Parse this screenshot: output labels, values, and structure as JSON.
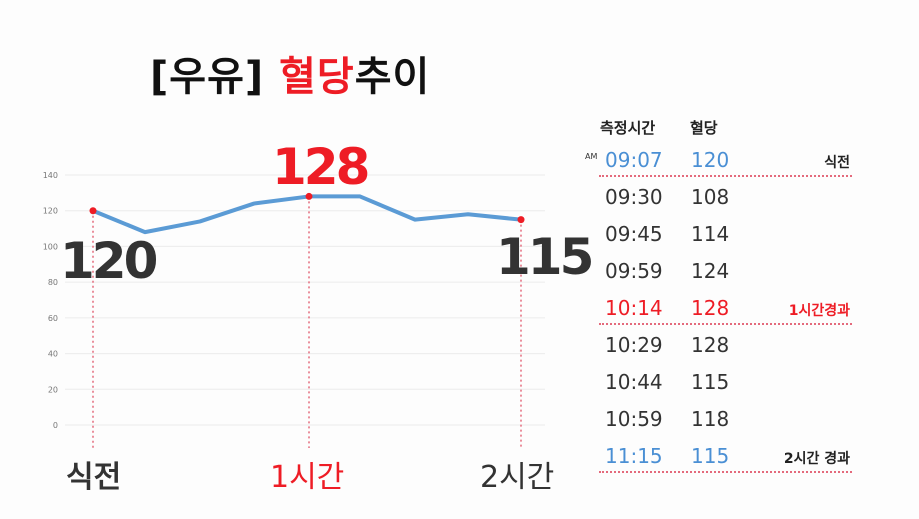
{
  "title": {
    "bracket": "[우유]",
    "highlight": "혈당",
    "rest": "추이"
  },
  "chart_data": {
    "type": "line",
    "title": "[우유] 혈당추이",
    "x": [
      "09:07",
      "09:30",
      "09:45",
      "09:59",
      "10:14",
      "10:29",
      "10:44",
      "10:59",
      "11:15"
    ],
    "series": [
      {
        "name": "혈당",
        "values": [
          120,
          108,
          114,
          124,
          128,
          128,
          115,
          118,
          115
        ],
        "color": "#5b9bd5"
      }
    ],
    "yticks": [
      0,
      20,
      40,
      60,
      80,
      100,
      120,
      140
    ],
    "ylim": [
      0,
      140
    ],
    "grid": true,
    "xlabel": "",
    "ylabel": "",
    "annotations": [
      {
        "label": "식전",
        "value": "120",
        "x": "09:07"
      },
      {
        "label": "1시간",
        "value": "128",
        "x": "10:14"
      },
      {
        "label": "2시간",
        "value": "115",
        "x": "11:15"
      }
    ]
  },
  "axis": {
    "yticks": [
      "140",
      "120",
      "100",
      "80",
      "60",
      "40",
      "20",
      "0"
    ]
  },
  "callouts": {
    "start": "120",
    "peak": "128",
    "end": "115"
  },
  "xlabels": {
    "start": "식전",
    "one_hour": "1시간",
    "two_hour": "2시간"
  },
  "table": {
    "headers": {
      "time": "측정시간",
      "value": "혈당"
    },
    "am_label": "AM",
    "rows": [
      {
        "time": "09:07",
        "value": "120",
        "note": "식전",
        "style": "blue"
      },
      {
        "time": "09:30",
        "value": "108",
        "note": "",
        "style": ""
      },
      {
        "time": "09:45",
        "value": "114",
        "note": "",
        "style": ""
      },
      {
        "time": "09:59",
        "value": "124",
        "note": "",
        "style": ""
      },
      {
        "time": "10:14",
        "value": "128",
        "note": "1시간경과",
        "style": "red"
      },
      {
        "time": "10:29",
        "value": "128",
        "note": "",
        "style": ""
      },
      {
        "time": "10:44",
        "value": "115",
        "note": "",
        "style": ""
      },
      {
        "time": "10:59",
        "value": "118",
        "note": "",
        "style": ""
      },
      {
        "time": "11:15",
        "value": "115",
        "note": "2시간 경과",
        "style": "blue"
      }
    ]
  }
}
